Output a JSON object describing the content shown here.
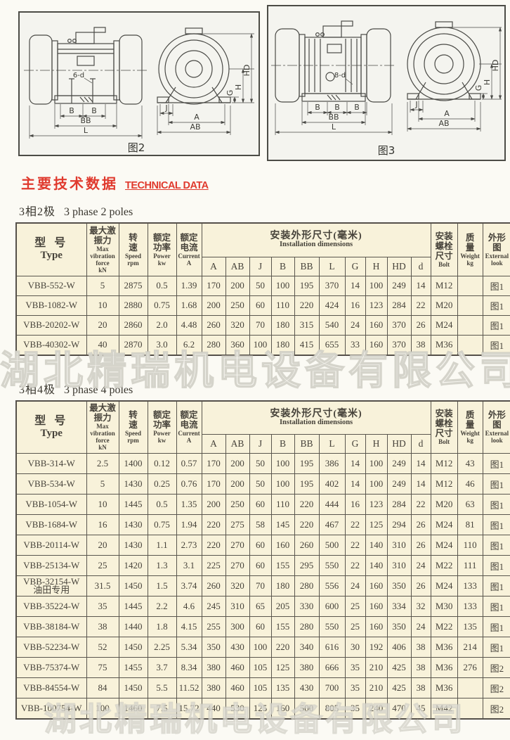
{
  "heading": {
    "zh": "主要技术数据",
    "en": "TECHNICAL DATA"
  },
  "watermark": "湖北精瑞机电设备有限公司",
  "colors": {
    "accent_red": "#e03a2e",
    "table_bg": "#f8f2da",
    "line": "#4c4c46"
  },
  "dim_letters": {
    "A": "A",
    "AB": "AB",
    "J": "J",
    "B": "B",
    "BB": "BB",
    "L": "L",
    "G": "G",
    "H": "H",
    "HD": "HD"
  },
  "figures": [
    {
      "caption": "图2",
      "bolt_label": "6-d"
    },
    {
      "caption": "图3",
      "bolt_label": "8-d"
    }
  ],
  "table_header": {
    "type": {
      "zh": "型  号",
      "en": "Type"
    },
    "force": {
      "zh": "最大激\n振力",
      "en": "Max\nvibration\nforce\nkN"
    },
    "speed": {
      "zh": "转\n速",
      "en": "Speed\nrpm"
    },
    "power": {
      "zh": "额定\n功率",
      "en": "Power\nkw"
    },
    "current": {
      "zh": "额定\n电流",
      "en": "Current\nA"
    },
    "dims": {
      "zh": "安装外形尺寸(毫米)",
      "en": "Installation  dimensions"
    },
    "dim_cols": [
      "A",
      "AB",
      "J",
      "B",
      "BB",
      "L",
      "G",
      "H",
      "HD",
      "d"
    ],
    "bolt": {
      "zh": "安装\n螺栓\n尺寸",
      "en": "Bolt"
    },
    "weight": {
      "zh": "质\n量",
      "en": "Weight\nkg"
    },
    "look": {
      "zh": "外形\n图",
      "en": "External\nlook"
    }
  },
  "tables": [
    {
      "section": {
        "zh": "3相2极",
        "en": "3 phase 2 poles"
      },
      "rows": [
        [
          "VBB-552-W",
          "5",
          "2875",
          "0.5",
          "1.39",
          "170",
          "200",
          "50",
          "100",
          "195",
          "370",
          "14",
          "100",
          "249",
          "14",
          "M12",
          "",
          "图1"
        ],
        [
          "VBB-1082-W",
          "10",
          "2880",
          "0.75",
          "1.68",
          "200",
          "250",
          "60",
          "110",
          "220",
          "424",
          "16",
          "123",
          "284",
          "22",
          "M20",
          "",
          "图1"
        ],
        [
          "VBB-20202-W",
          "20",
          "2860",
          "2.0",
          "4.48",
          "260",
          "320",
          "70",
          "180",
          "315",
          "540",
          "24",
          "160",
          "370",
          "26",
          "M24",
          "",
          "图1"
        ],
        [
          "VBB-40302-W",
          "40",
          "2870",
          "3.0",
          "6.2",
          "280",
          "360",
          "100",
          "180",
          "415",
          "655",
          "33",
          "160",
          "370",
          "38",
          "M36",
          "",
          "图1"
        ]
      ]
    },
    {
      "section": {
        "zh": "3相4极",
        "en": "3 phase 4 poles"
      },
      "rows": [
        [
          "VBB-314-W",
          "2.5",
          "1400",
          "0.12",
          "0.57",
          "170",
          "200",
          "50",
          "100",
          "195",
          "386",
          "14",
          "100",
          "249",
          "14",
          "M12",
          "43",
          "图1"
        ],
        [
          "VBB-534-W",
          "5",
          "1430",
          "0.25",
          "0.76",
          "170",
          "200",
          "50",
          "100",
          "195",
          "402",
          "14",
          "100",
          "249",
          "14",
          "M12",
          "46",
          "图1"
        ],
        [
          "VBB-1054-W",
          "10",
          "1445",
          "0.5",
          "1.35",
          "200",
          "250",
          "60",
          "110",
          "220",
          "444",
          "16",
          "123",
          "284",
          "22",
          "M20",
          "63",
          "图1"
        ],
        [
          "VBB-1684-W",
          "16",
          "1430",
          "0.75",
          "1.94",
          "220",
          "275",
          "58",
          "145",
          "220",
          "467",
          "22",
          "125",
          "294",
          "26",
          "M24",
          "81",
          "图1"
        ],
        [
          "VBB-20114-W",
          "20",
          "1430",
          "1.1",
          "2.73",
          "220",
          "270",
          "60",
          "160",
          "260",
          "500",
          "22",
          "140",
          "310",
          "26",
          "M24",
          "110",
          "图1"
        ],
        [
          "VBB-25134-W",
          "25",
          "1420",
          "1.3",
          "3.1",
          "225",
          "270",
          "60",
          "155",
          "295",
          "550",
          "22",
          "140",
          "310",
          "24",
          "M22",
          "111",
          "图1"
        ],
        [
          "VBB-32154-W\n油田专用",
          "31.5",
          "1450",
          "1.5",
          "3.74",
          "260",
          "320",
          "70",
          "180",
          "280",
          "556",
          "24",
          "160",
          "350",
          "26",
          "M24",
          "133",
          "图1"
        ],
        [
          "VBB-35224-W",
          "35",
          "1445",
          "2.2",
          "4.6",
          "245",
          "310",
          "65",
          "205",
          "330",
          "600",
          "25",
          "160",
          "334",
          "32",
          "M30",
          "133",
          "图1"
        ],
        [
          "VBB-38184-W",
          "38",
          "1440",
          "1.8",
          "4.15",
          "255",
          "300",
          "60",
          "155",
          "280",
          "550",
          "25",
          "160",
          "350",
          "24",
          "M22",
          "135",
          "图1"
        ],
        [
          "VBB-52234-W",
          "52",
          "1450",
          "2.25",
          "5.34",
          "350",
          "430",
          "100",
          "220",
          "340",
          "616",
          "30",
          "192",
          "406",
          "38",
          "M36",
          "214",
          "图1"
        ],
        [
          "VBB-75374-W",
          "75",
          "1455",
          "3.7",
          "8.34",
          "380",
          "460",
          "105",
          "125",
          "380",
          "666",
          "35",
          "210",
          "425",
          "38",
          "M36",
          "276",
          "图2"
        ],
        [
          "VBB-84554-W",
          "84",
          "1450",
          "5.5",
          "11.52",
          "380",
          "460",
          "105",
          "135",
          "430",
          "700",
          "35",
          "210",
          "425",
          "38",
          "M36",
          "",
          "图2"
        ],
        [
          "VBB-100754-W",
          "100",
          "1460",
          "7.5",
          "15.72",
          "440",
          "530",
          "125",
          "160",
          "500",
          "805",
          "35",
          "240",
          "470",
          "45",
          "M42",
          "",
          "图2"
        ]
      ]
    }
  ]
}
